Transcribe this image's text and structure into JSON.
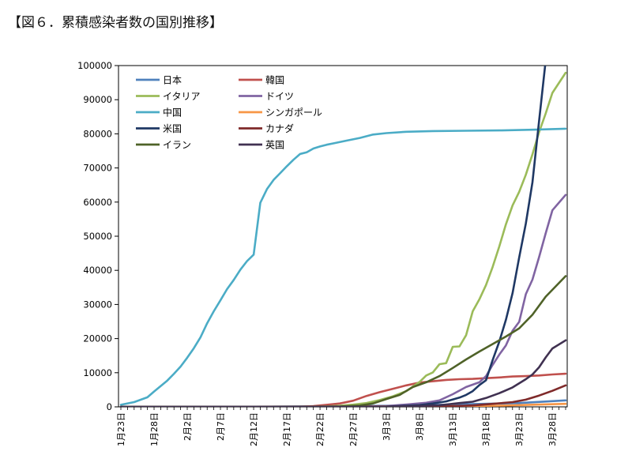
{
  "title": "【図６．累積感染者数の国別推移】",
  "chart_data": {
    "type": "line",
    "title": "",
    "xlabel": "",
    "ylabel": "",
    "ylim": [
      0,
      100000
    ],
    "yticks": [
      0,
      10000,
      20000,
      30000,
      40000,
      50000,
      60000,
      70000,
      80000,
      90000,
      100000
    ],
    "x_start": "1月23日",
    "x_end": "3月30日",
    "xticks": [
      "1月23日",
      "1月28日",
      "2月2日",
      "2月7日",
      "2月12日",
      "2月17日",
      "2月22日",
      "2月27日",
      "3月3日",
      "3月8日",
      "3月13日",
      "3月18日",
      "3月23日",
      "3月28日"
    ],
    "grid": false,
    "legend": "top-left",
    "series": [
      {
        "name": "日本",
        "color": "#4f81bd",
        "points": [
          [
            "1月23日",
            0
          ],
          [
            "2月12日",
            30
          ],
          [
            "2月22日",
            130
          ],
          [
            "3月3日",
            290
          ],
          [
            "3月13日",
            700
          ],
          [
            "3月23日",
            1100
          ],
          [
            "3月30日",
            1900
          ]
        ]
      },
      {
        "name": "韓国",
        "color": "#c0504d",
        "points": [
          [
            "1月23日",
            0
          ],
          [
            "2月17日",
            30
          ],
          [
            "2月19日",
            50
          ],
          [
            "2月21日",
            200
          ],
          [
            "2月23日",
            600
          ],
          [
            "2月25日",
            1000
          ],
          [
            "2月27日",
            1800
          ],
          [
            "2月29日",
            3200
          ],
          [
            "3月2日",
            4300
          ],
          [
            "3月4日",
            5300
          ],
          [
            "3月6日",
            6300
          ],
          [
            "3月8日",
            7100
          ],
          [
            "3月10日",
            7500
          ],
          [
            "3月12日",
            7900
          ],
          [
            "3月14日",
            8100
          ],
          [
            "3月16日",
            8200
          ],
          [
            "3月18日",
            8400
          ],
          [
            "3月20日",
            8600
          ],
          [
            "3月22日",
            8900
          ],
          [
            "3月24日",
            9000
          ],
          [
            "3月26日",
            9200
          ],
          [
            "3月28日",
            9500
          ],
          [
            "3月30日",
            9700
          ]
        ]
      },
      {
        "name": "イタリア",
        "color": "#9bbb59",
        "points": [
          [
            "1月23日",
            0
          ],
          [
            "2月21日",
            20
          ],
          [
            "2月23日",
            150
          ],
          [
            "2月25日",
            320
          ],
          [
            "2月27日",
            650
          ],
          [
            "2月29日",
            1100
          ],
          [
            "3月2日",
            2000
          ],
          [
            "3月4日",
            3100
          ],
          [
            "3月6日",
            4600
          ],
          [
            "3月8日",
            7300
          ],
          [
            "3月9日",
            9200
          ],
          [
            "3月10日",
            10100
          ],
          [
            "3月11日",
            12500
          ],
          [
            "3月12日",
            12800
          ],
          [
            "3月13日",
            17600
          ],
          [
            "3月14日",
            17700
          ],
          [
            "3月15日",
            21000
          ],
          [
            "3月16日",
            28000
          ],
          [
            "3月17日",
            31500
          ],
          [
            "3月18日",
            35700
          ],
          [
            "3月19日",
            41000
          ],
          [
            "3月20日",
            47000
          ],
          [
            "3月21日",
            53500
          ],
          [
            "3月22日",
            59000
          ],
          [
            "3月23日",
            63000
          ],
          [
            "3月24日",
            68000
          ],
          [
            "3月25日",
            74000
          ],
          [
            "3月26日",
            80500
          ],
          [
            "3月27日",
            86000
          ],
          [
            "3月28日",
            92000
          ],
          [
            "3月30日",
            97900
          ]
        ]
      },
      {
        "name": "ドイツ",
        "color": "#8064a2",
        "points": [
          [
            "1月23日",
            0
          ],
          [
            "2月27日",
            30
          ],
          [
            "3月3日",
            200
          ],
          [
            "3月6日",
            700
          ],
          [
            "3月9日",
            1200
          ],
          [
            "3月11日",
            1900
          ],
          [
            "3月13日",
            3700
          ],
          [
            "3月15日",
            5800
          ],
          [
            "3月17日",
            7200
          ],
          [
            "3月18日",
            9000
          ],
          [
            "3月19日",
            12300
          ],
          [
            "3月20日",
            15300
          ],
          [
            "3月21日",
            18000
          ],
          [
            "3月22日",
            22300
          ],
          [
            "3月23日",
            24900
          ],
          [
            "3月24日",
            33000
          ],
          [
            "3月25日",
            37300
          ],
          [
            "3月26日",
            43900
          ],
          [
            "3月27日",
            50900
          ],
          [
            "3月28日",
            57600
          ],
          [
            "3月30日",
            62100
          ]
        ]
      },
      {
        "name": "中国",
        "color": "#4bacc6",
        "points": [
          [
            "1月23日",
            600
          ],
          [
            "1月25日",
            1400
          ],
          [
            "1月27日",
            2800
          ],
          [
            "1月28日",
            4500
          ],
          [
            "1月30日",
            7700
          ],
          [
            "1月31日",
            9700
          ],
          [
            "2月1日",
            11800
          ],
          [
            "2月2日",
            14400
          ],
          [
            "2月3日",
            17200
          ],
          [
            "2月4日",
            20400
          ],
          [
            "2月5日",
            24500
          ],
          [
            "2月6日",
            28000
          ],
          [
            "2月7日",
            31200
          ],
          [
            "2月8日",
            34500
          ],
          [
            "2月9日",
            37200
          ],
          [
            "2月10日",
            40200
          ],
          [
            "2月11日",
            42700
          ],
          [
            "2月12日",
            44600
          ],
          [
            "2月13日",
            59800
          ],
          [
            "2月14日",
            63800
          ],
          [
            "2月15日",
            66500
          ],
          [
            "2月16日",
            68500
          ],
          [
            "2月17日",
            70500
          ],
          [
            "2月18日",
            72400
          ],
          [
            "2月19日",
            74100
          ],
          [
            "2月20日",
            74600
          ],
          [
            "2月21日",
            75700
          ],
          [
            "2月22日",
            76300
          ],
          [
            "2月23日",
            76800
          ],
          [
            "2月24日",
            77200
          ],
          [
            "2月26日",
            78000
          ],
          [
            "2月28日",
            78800
          ],
          [
            "3月1日",
            79800
          ],
          [
            "3月3日",
            80200
          ],
          [
            "3月6日",
            80600
          ],
          [
            "3月10日",
            80800
          ],
          [
            "3月15日",
            80900
          ],
          [
            "3月20日",
            81000
          ],
          [
            "3月25日",
            81200
          ],
          [
            "3月30日",
            81500
          ]
        ]
      },
      {
        "name": "シンガポール",
        "color": "#f79646",
        "points": [
          [
            "1月23日",
            0
          ],
          [
            "2月12日",
            50
          ],
          [
            "3月3日",
            110
          ],
          [
            "3月13日",
            200
          ],
          [
            "3月20日",
            350
          ],
          [
            "3月25日",
            630
          ],
          [
            "3月30日",
            880
          ]
        ]
      },
      {
        "name": "米国",
        "color": "#1f3864",
        "points": [
          [
            "1月23日",
            0
          ],
          [
            "3月3日",
            100
          ],
          [
            "3月8日",
            500
          ],
          [
            "3月10日",
            1000
          ],
          [
            "3月12日",
            1600
          ],
          [
            "3月14日",
            2700
          ],
          [
            "3月15日",
            3500
          ],
          [
            "3月16日",
            4600
          ],
          [
            "3月17日",
            6400
          ],
          [
            "3月18日",
            7800
          ],
          [
            "3月19日",
            13700
          ],
          [
            "3月20日",
            19100
          ],
          [
            "3月21日",
            25500
          ],
          [
            "3月22日",
            33300
          ],
          [
            "3月23日",
            43800
          ],
          [
            "3月24日",
            53700
          ],
          [
            "3月25日",
            65800
          ],
          [
            "3月26日",
            83800
          ],
          [
            "3月27日",
            101600
          ]
        ]
      },
      {
        "name": "カナダ",
        "color": "#7f2a2a",
        "points": [
          [
            "1月23日",
            0
          ],
          [
            "3月8日",
            60
          ],
          [
            "3月12日",
            140
          ],
          [
            "3月16日",
            420
          ],
          [
            "3月19日",
            870
          ],
          [
            "3月22日",
            1400
          ],
          [
            "3月24日",
            2100
          ],
          [
            "3月26日",
            3300
          ],
          [
            "3月28日",
            4700
          ],
          [
            "3月30日",
            6300
          ]
        ]
      },
      {
        "name": "イラン",
        "color": "#4f6228",
        "points": [
          [
            "1月23日",
            0
          ],
          [
            "2月21日",
            20
          ],
          [
            "2月25日",
            100
          ],
          [
            "2月28日",
            400
          ],
          [
            "3月1日",
            1000
          ],
          [
            "3月3日",
            2300
          ],
          [
            "3月5日",
            3500
          ],
          [
            "3月7日",
            5800
          ],
          [
            "3月9日",
            7200
          ],
          [
            "3月11日",
            9000
          ],
          [
            "3月13日",
            11400
          ],
          [
            "3月15日",
            13900
          ],
          [
            "3月17日",
            16200
          ],
          [
            "3月19日",
            18400
          ],
          [
            "3月21日",
            20600
          ],
          [
            "3月23日",
            23000
          ],
          [
            "3月25日",
            27000
          ],
          [
            "3月27日",
            32300
          ],
          [
            "3月30日",
            38300
          ]
        ]
      },
      {
        "name": "英国",
        "color": "#403151",
        "points": [
          [
            "1月23日",
            0
          ],
          [
            "3月3日",
            50
          ],
          [
            "3月8日",
            270
          ],
          [
            "3月11日",
            460
          ],
          [
            "3月14日",
            1100
          ],
          [
            "3月16日",
            1500
          ],
          [
            "3月18日",
            2600
          ],
          [
            "3月20日",
            4000
          ],
          [
            "3月22日",
            5700
          ],
          [
            "3月24日",
            8100
          ],
          [
            "3月25日",
            9500
          ],
          [
            "3月26日",
            11600
          ],
          [
            "3月27日",
            14500
          ],
          [
            "3月28日",
            17100
          ],
          [
            "3月30日",
            19500
          ]
        ]
      }
    ]
  }
}
